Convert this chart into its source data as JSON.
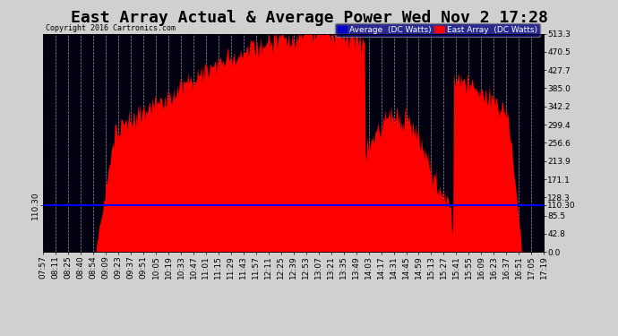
{
  "title": "East Array Actual & Average Power Wed Nov 2 17:28",
  "copyright": "Copyright 2016 Cartronics.com",
  "legend_labels": [
    "Average  (DC Watts)",
    "East Array  (DC Watts)"
  ],
  "avg_value": 110.3,
  "y_ticks": [
    0.0,
    42.8,
    85.5,
    128.3,
    171.1,
    213.9,
    256.6,
    299.4,
    342.2,
    385.0,
    427.7,
    470.5,
    513.3
  ],
  "ylim": [
    0.0,
    513.3
  ],
  "plot_bg": "#000010",
  "fill_color": "#ff0000",
  "avg_line_color": "#0000ff",
  "x_labels": [
    "07:57",
    "08:11",
    "08:25",
    "08:40",
    "08:54",
    "09:09",
    "09:23",
    "09:37",
    "09:51",
    "10:05",
    "10:19",
    "10:33",
    "10:47",
    "11:01",
    "11:15",
    "11:29",
    "11:43",
    "11:57",
    "12:11",
    "12:25",
    "12:39",
    "12:53",
    "13:07",
    "13:21",
    "13:35",
    "13:49",
    "14:03",
    "14:17",
    "14:31",
    "14:45",
    "14:59",
    "15:13",
    "15:27",
    "15:41",
    "15:55",
    "16:09",
    "16:23",
    "16:37",
    "16:51",
    "17:05",
    "17:19"
  ],
  "title_fontsize": 13,
  "tick_fontsize": 6.5
}
